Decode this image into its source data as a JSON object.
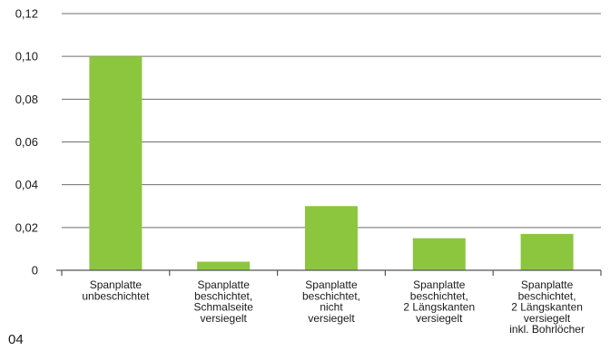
{
  "chart_data": {
    "type": "bar",
    "categories": [
      [
        "Spanplatte",
        "unbeschichtet"
      ],
      [
        "Spanplatte",
        "beschichtet,",
        "Schmalseite",
        "versiegelt"
      ],
      [
        "Spanplatte",
        "beschichtet,",
        "nicht",
        "versiegelt"
      ],
      [
        "Spanplatte",
        "beschichtet,",
        "2 Längskanten",
        "versiegelt"
      ],
      [
        "Spanplatte",
        "beschichtet,",
        "2 Längskanten",
        "versiegelt",
        "inkl. Bohrlöcher"
      ]
    ],
    "values": [
      0.1,
      0.004,
      0.03,
      0.015,
      0.017
    ],
    "yticks": [
      "0",
      "0,02",
      "0,04",
      "0,06",
      "0,08",
      "0,10",
      "0,12"
    ],
    "ylim": [
      0,
      0.12
    ],
    "grid": true,
    "bar_color": "#8cc63f",
    "title": "",
    "xlabel": "",
    "ylabel": ""
  },
  "figure_label": "04"
}
